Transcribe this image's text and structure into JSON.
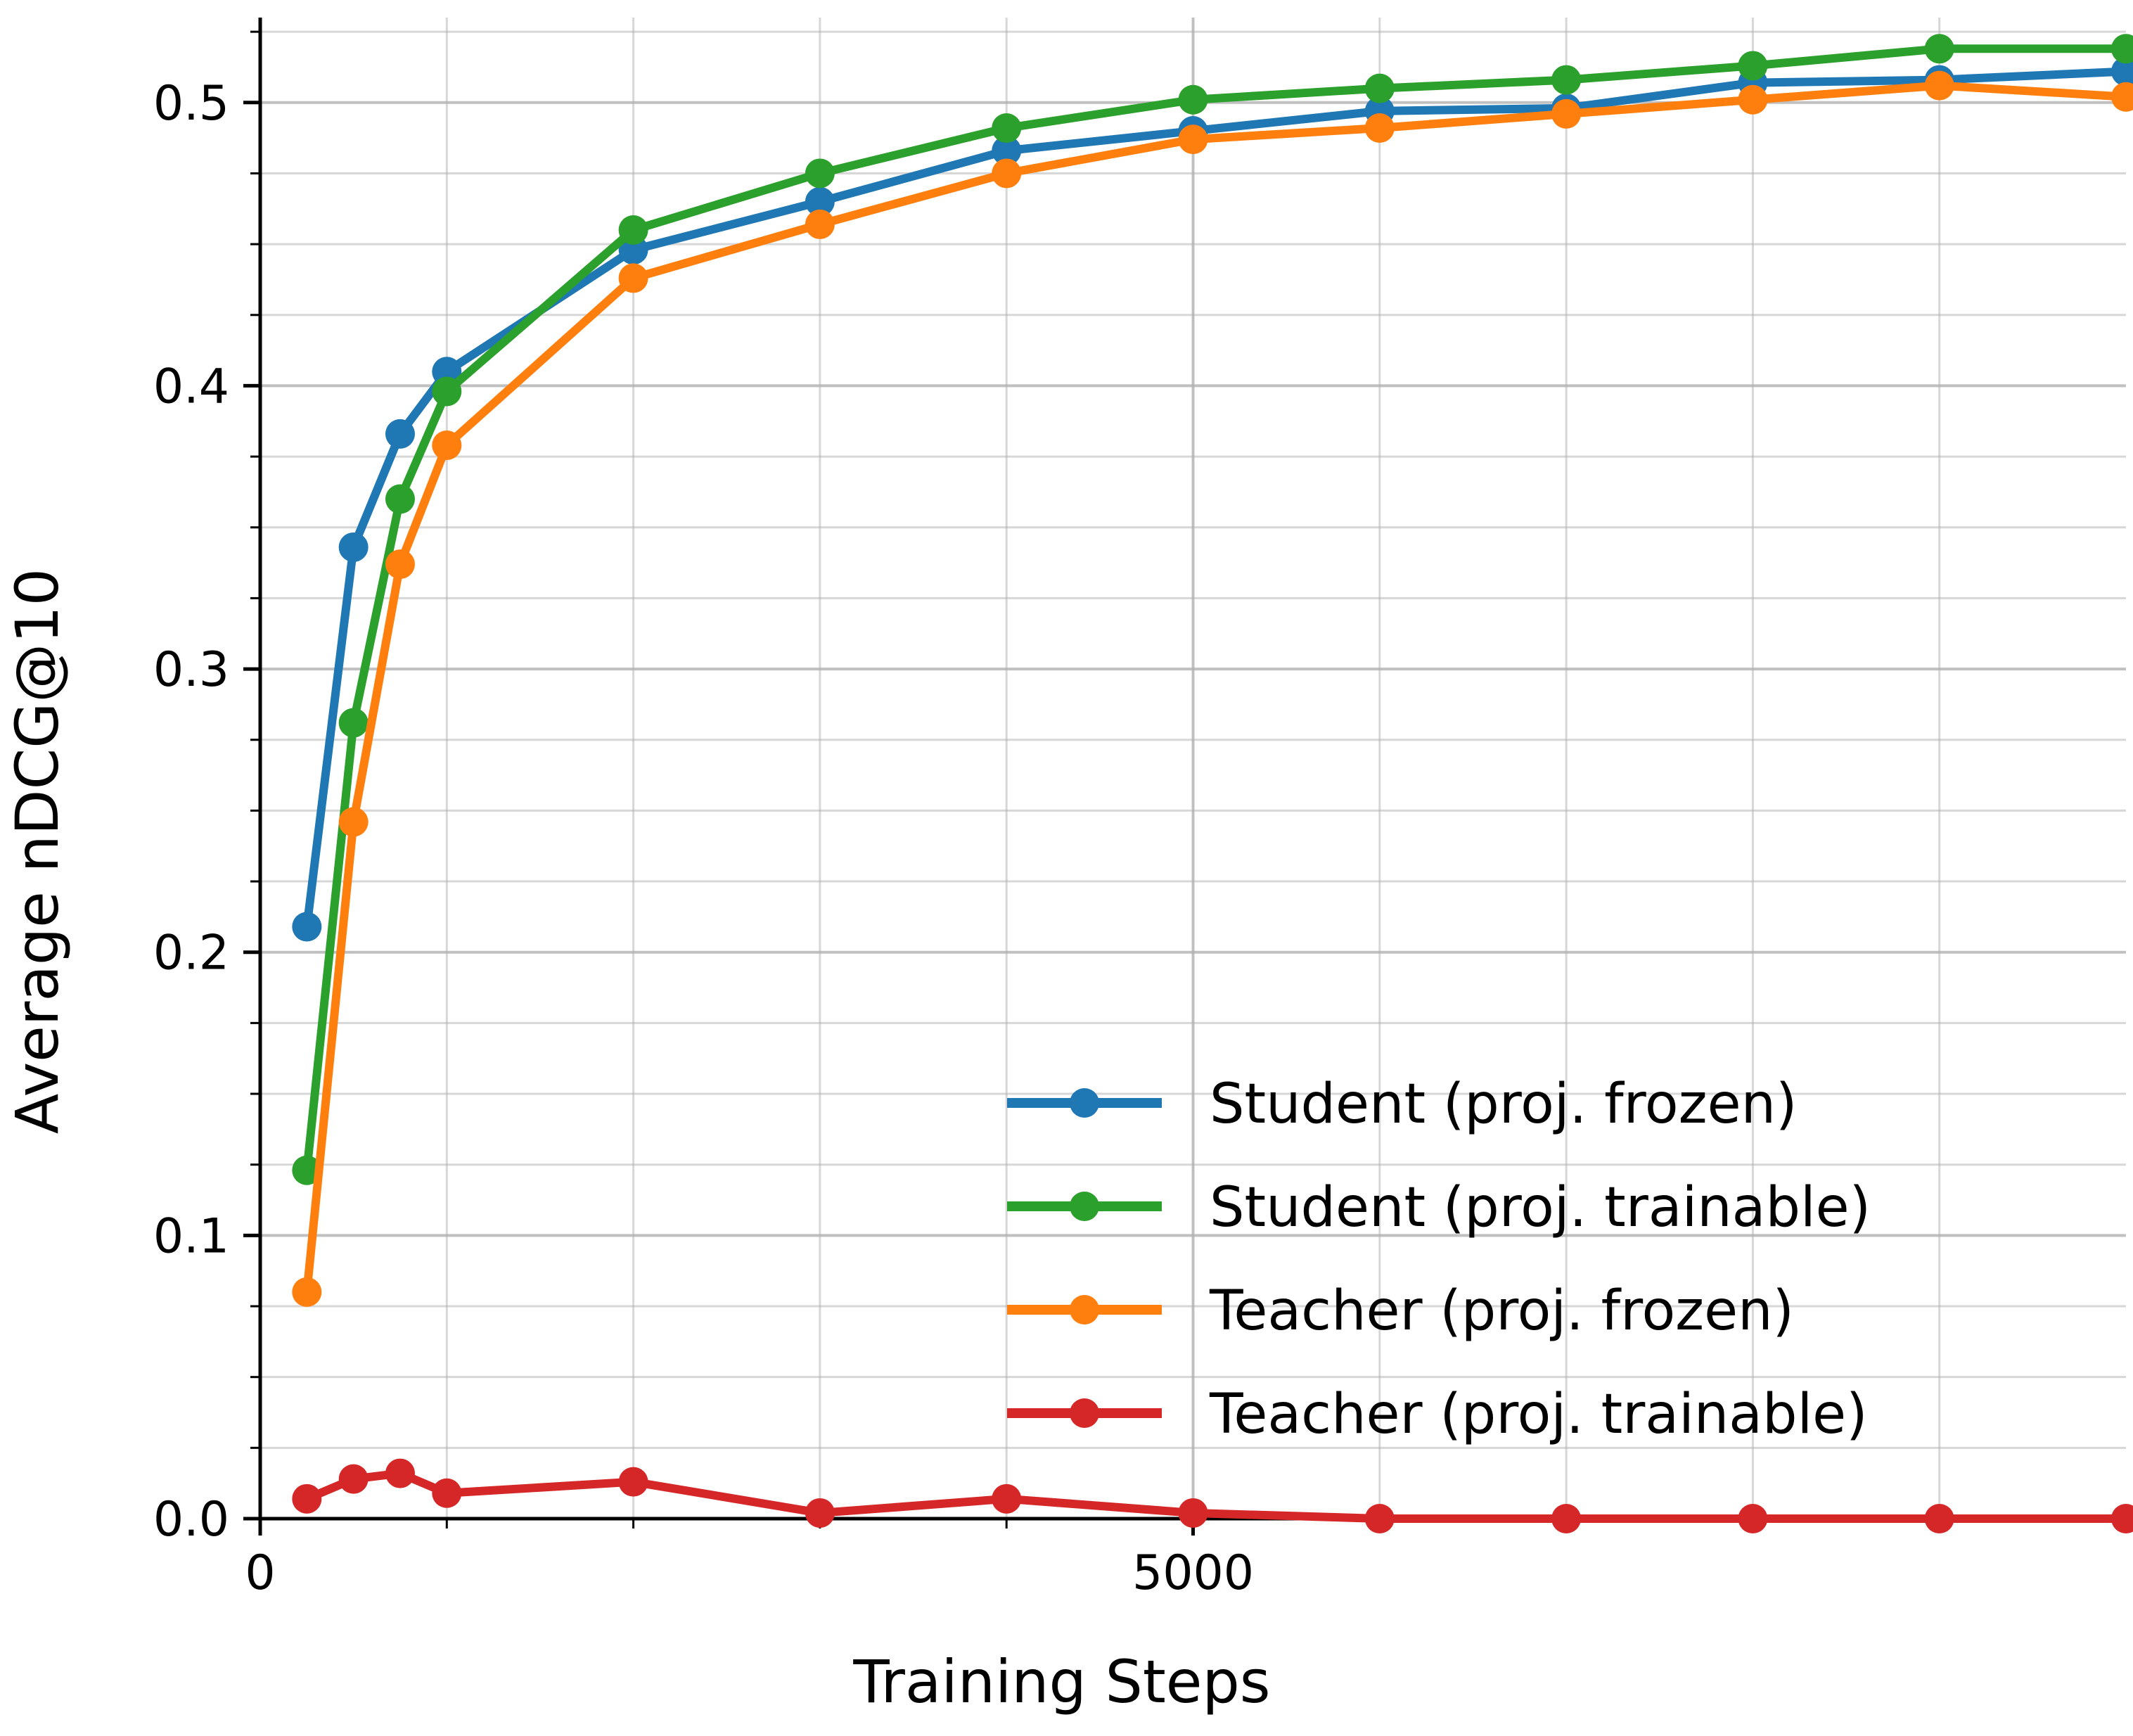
{
  "chart_data": {
    "type": "line",
    "title": "",
    "xlabel": "Training Steps",
    "ylabel": "Average nDCG@10",
    "xlim": [
      0,
      10000
    ],
    "ylim": [
      0,
      0.53
    ],
    "x_ticks": [
      0,
      5000
    ],
    "x_tick_labels": [
      "0",
      "5000"
    ],
    "x_minor_grid": [
      1000,
      2000,
      3000,
      4000,
      6000,
      7000,
      8000,
      9000
    ],
    "y_ticks": [
      0.0,
      0.1,
      0.2,
      0.3,
      0.4,
      0.5
    ],
    "y_tick_labels": [
      "0.0",
      "0.1",
      "0.2",
      "0.3",
      "0.4",
      "0.5"
    ],
    "y_minor_step": 0.025,
    "grid": true,
    "legend_position": "lower-right",
    "x": [
      250,
      500,
      750,
      1000,
      2000,
      3000,
      4000,
      5000,
      6000,
      7000,
      8000,
      9000,
      10000
    ],
    "series": [
      {
        "name": "Student (proj. frozen)",
        "color": "#1f77b4",
        "values": [
          0.209,
          0.343,
          0.383,
          0.405,
          0.448,
          0.465,
          0.483,
          0.49,
          0.497,
          0.498,
          0.507,
          0.508,
          0.511
        ]
      },
      {
        "name": "Student (proj. trainable)",
        "color": "#2ca02c",
        "values": [
          0.123,
          0.281,
          0.36,
          0.398,
          0.455,
          0.475,
          0.491,
          0.501,
          0.505,
          0.508,
          0.513,
          0.519,
          0.519
        ]
      },
      {
        "name": "Teacher (proj. frozen)",
        "color": "#ff7f0e",
        "values": [
          0.08,
          0.246,
          0.337,
          0.379,
          0.438,
          0.457,
          0.475,
          0.487,
          0.491,
          0.496,
          0.501,
          0.506,
          0.502
        ]
      },
      {
        "name": "Teacher (proj. trainable)",
        "color": "#d62728",
        "values": [
          0.007,
          0.014,
          0.016,
          0.009,
          0.013,
          0.002,
          0.007,
          0.002,
          0.0,
          0.0,
          0.0,
          0.0,
          0.0
        ]
      }
    ]
  }
}
